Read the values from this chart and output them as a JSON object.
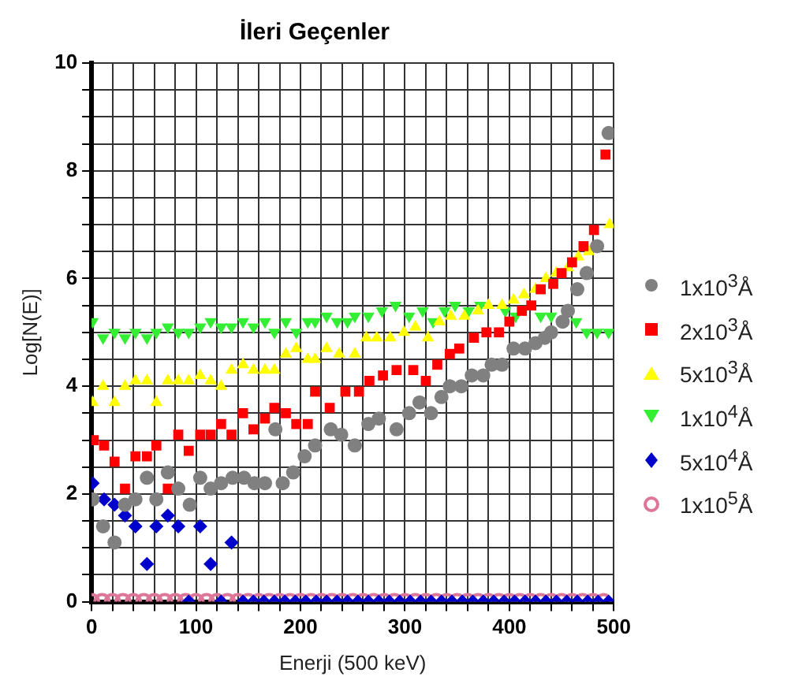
{
  "chart_data": {
    "type": "scatter",
    "title": "İleri Geçenler",
    "xlabel": "Enerji (500 keV)",
    "ylabel": "Log[N(E)]",
    "xlim": [
      0,
      500
    ],
    "xticks": [
      0,
      {
        "value": 20,
        "label": null
      },
      {
        "value": 40,
        "label": null
      },
      {
        "value": 60,
        "label": null
      },
      {
        "value": 80,
        "label": null
      },
      100,
      {
        "value": 120,
        "label": null
      },
      {
        "value": 140,
        "label": null
      },
      {
        "value": 160,
        "label": null
      },
      {
        "value": 180,
        "label": null
      },
      200,
      {
        "value": 220,
        "label": null
      },
      {
        "value": 240,
        "label": null
      },
      {
        "value": 260,
        "label": null
      },
      {
        "value": 280,
        "label": null
      },
      300,
      {
        "value": 320,
        "label": null
      },
      {
        "value": 340,
        "label": null
      },
      {
        "value": 360,
        "label": null
      },
      {
        "value": 380,
        "label": null
      },
      400,
      {
        "value": 420,
        "label": null
      },
      {
        "value": 440,
        "label": null
      },
      {
        "value": 460,
        "label": null
      },
      {
        "value": 480,
        "label": null
      },
      500
    ],
    "ylim": [
      0,
      10
    ],
    "yticks": [
      0,
      {
        "value": 0.5,
        "label": null
      },
      {
        "value": 1,
        "label": null
      },
      {
        "value": 1.5,
        "label": null
      },
      2,
      {
        "value": 2.5,
        "label": null
      },
      {
        "value": 3,
        "label": null
      },
      {
        "value": 3.5,
        "label": null
      },
      4,
      {
        "value": 4.5,
        "label": null
      },
      {
        "value": 5,
        "label": null
      },
      {
        "value": 5.5,
        "label": null
      },
      6,
      {
        "value": 6.5,
        "label": null
      },
      {
        "value": 7,
        "label": null
      },
      {
        "value": 7.5,
        "label": null
      },
      8,
      {
        "value": 8.5,
        "label": null
      },
      {
        "value": 9,
        "label": null
      },
      {
        "value": 9.5,
        "label": null
      },
      10
    ],
    "grid": true,
    "legend": "right",
    "series": [
      {
        "name": "1x10$^{3}$Å",
        "color": "#808080",
        "marker": "circle",
        "x": [
          1,
          11,
          22,
          32,
          42,
          53,
          62,
          73,
          83,
          94,
          104,
          114,
          124,
          135,
          146,
          156,
          166,
          176,
          183,
          193,
          204,
          214,
          229,
          239,
          252,
          265,
          275,
          292,
          304,
          314,
          325,
          335,
          343,
          354,
          364,
          375,
          383,
          393,
          404,
          415,
          425,
          434,
          440,
          451,
          456,
          465,
          474,
          484,
          495
        ],
        "values": [
          1.9,
          1.4,
          1.1,
          1.8,
          1.9,
          2.3,
          1.9,
          2.4,
          2.1,
          1.8,
          2.3,
          2.1,
          2.2,
          2.3,
          2.3,
          2.2,
          2.2,
          3.2,
          2.2,
          2.4,
          2.7,
          2.9,
          3.2,
          3.1,
          2.9,
          3.3,
          3.4,
          3.2,
          3.5,
          3.7,
          3.5,
          3.8,
          4.0,
          4.0,
          4.2,
          4.2,
          4.4,
          4.4,
          4.7,
          4.7,
          4.8,
          4.9,
          5.0,
          5.2,
          5.4,
          5.8,
          6.1,
          6.6,
          8.7
        ]
      },
      {
        "name": "2x10$^{3}$Å",
        "color": "#ff0000",
        "marker": "square",
        "x": [
          2,
          12,
          22,
          32,
          42,
          53,
          62,
          73,
          83,
          93,
          104,
          114,
          124,
          134,
          145,
          155,
          166,
          175,
          186,
          196,
          207,
          214,
          228,
          243,
          256,
          266,
          279,
          292,
          308,
          320,
          331,
          343,
          352,
          366,
          378,
          390,
          400,
          412,
          421,
          430,
          442,
          450,
          460,
          471,
          481,
          492
        ],
        "values": [
          3.0,
          2.9,
          2.6,
          2.1,
          2.7,
          2.7,
          2.9,
          2.1,
          3.1,
          2.8,
          3.1,
          3.1,
          3.3,
          3.1,
          3.5,
          3.2,
          3.4,
          3.6,
          3.5,
          3.3,
          3.3,
          3.9,
          3.6,
          3.9,
          3.9,
          4.1,
          4.2,
          4.3,
          4.3,
          4.1,
          4.4,
          4.6,
          4.7,
          4.9,
          5.0,
          5.0,
          5.2,
          5.4,
          5.5,
          5.8,
          5.9,
          6.1,
          6.3,
          6.6,
          6.9,
          8.3
        ]
      },
      {
        "name": "5x10$^{3}$Å",
        "color": "#ffff00",
        "marker": "triangle",
        "x": [
          1,
          11,
          22,
          32,
          42,
          53,
          62,
          73,
          83,
          93,
          104,
          114,
          124,
          134,
          145,
          155,
          166,
          175,
          186,
          196,
          207,
          214,
          225,
          237,
          252,
          263,
          273,
          286,
          299,
          310,
          322,
          333,
          344,
          357,
          370,
          380,
          393,
          404,
          414,
          425,
          435,
          445,
          456,
          466,
          476,
          484,
          496
        ],
        "values": [
          3.7,
          4.0,
          3.7,
          4.0,
          4.1,
          4.1,
          3.7,
          4.1,
          4.1,
          4.1,
          4.2,
          4.1,
          4.0,
          4.3,
          4.4,
          4.3,
          4.3,
          4.3,
          4.6,
          4.7,
          4.5,
          4.5,
          4.7,
          4.6,
          4.6,
          4.9,
          4.9,
          4.9,
          5.0,
          5.1,
          4.9,
          5.2,
          5.3,
          5.3,
          5.4,
          5.5,
          5.5,
          5.6,
          5.7,
          5.8,
          6.0,
          6.1,
          6.2,
          6.4,
          6.5,
          null,
          7.0
        ]
      },
      {
        "name": "1x10$^{4}$Å",
        "color": "#33ee33",
        "marker": "triangle-down",
        "x": [
          1,
          11,
          22,
          32,
          42,
          53,
          62,
          73,
          83,
          93,
          104,
          114,
          124,
          134,
          145,
          155,
          166,
          175,
          186,
          196,
          207,
          214,
          225,
          235,
          245,
          252,
          265,
          278,
          291,
          304,
          317,
          327,
          338,
          348,
          361,
          372,
          383,
          396,
          406,
          417,
          430,
          440,
          453,
          464,
          474,
          484,
          495
        ],
        "values": [
          5.2,
          4.9,
          5.0,
          4.9,
          5.0,
          4.9,
          5.0,
          5.1,
          5.0,
          5.0,
          5.1,
          5.2,
          5.1,
          5.1,
          5.2,
          5.1,
          5.2,
          5.0,
          5.2,
          5.0,
          5.2,
          5.2,
          5.3,
          5.2,
          5.2,
          5.3,
          5.3,
          5.4,
          5.5,
          5.3,
          5.4,
          5.2,
          5.4,
          5.5,
          5.4,
          5.5,
          null,
          5.4,
          5.3,
          null,
          5.3,
          5.3,
          null,
          5.2,
          5.0,
          5.0,
          5.0
        ]
      },
      {
        "name": "5x10$^{4}$Å",
        "color": "#0000cc",
        "marker": "diamond",
        "x": [
          1,
          12,
          22,
          32,
          42,
          53,
          62,
          73,
          83,
          93,
          104,
          114,
          124,
          134,
          145,
          155,
          165,
          175,
          185,
          195,
          205,
          215,
          225,
          235,
          245,
          255,
          265,
          275,
          285,
          295,
          305,
          315,
          325,
          335,
          345,
          355,
          365,
          375,
          385,
          395,
          405,
          415,
          425,
          435,
          445,
          455,
          465,
          475,
          485,
          495
        ],
        "values": [
          2.2,
          1.9,
          1.8,
          1.6,
          1.4,
          0.7,
          1.4,
          1.6,
          1.4,
          0,
          1.4,
          0.7,
          0,
          1.1,
          0,
          0,
          0,
          0,
          0,
          0,
          0,
          0,
          0,
          0,
          0,
          0,
          0,
          0,
          0,
          0,
          0,
          0,
          0,
          0,
          0,
          0,
          0,
          0,
          0,
          0,
          0,
          0,
          0,
          0,
          0,
          0,
          0,
          0,
          0,
          0
        ]
      },
      {
        "name": "1x10$^{5}$Å",
        "color": "#dd7799",
        "marker": "circle-open",
        "x": [
          0,
          10,
          20,
          30,
          40,
          50,
          60,
          70,
          80,
          90,
          100,
          110,
          120,
          130,
          140,
          150,
          160,
          170,
          180,
          190,
          200,
          210,
          220,
          230,
          240,
          250,
          260,
          270,
          280,
          290,
          300,
          310,
          320,
          330,
          340,
          350,
          360,
          370,
          380,
          390,
          400,
          410,
          420,
          430,
          440,
          450,
          460,
          470,
          480,
          490
        ],
        "values": [
          0,
          0,
          0,
          0,
          0,
          0,
          0,
          0,
          0,
          0,
          0,
          0,
          0,
          0,
          0,
          0,
          0,
          0,
          0,
          0,
          0,
          0,
          0,
          0,
          0,
          0,
          0,
          0,
          0,
          0,
          0,
          0,
          0,
          0,
          0,
          0,
          0,
          0,
          0,
          0,
          0,
          0,
          0,
          0,
          0,
          0,
          0,
          0,
          0,
          0
        ]
      }
    ]
  }
}
